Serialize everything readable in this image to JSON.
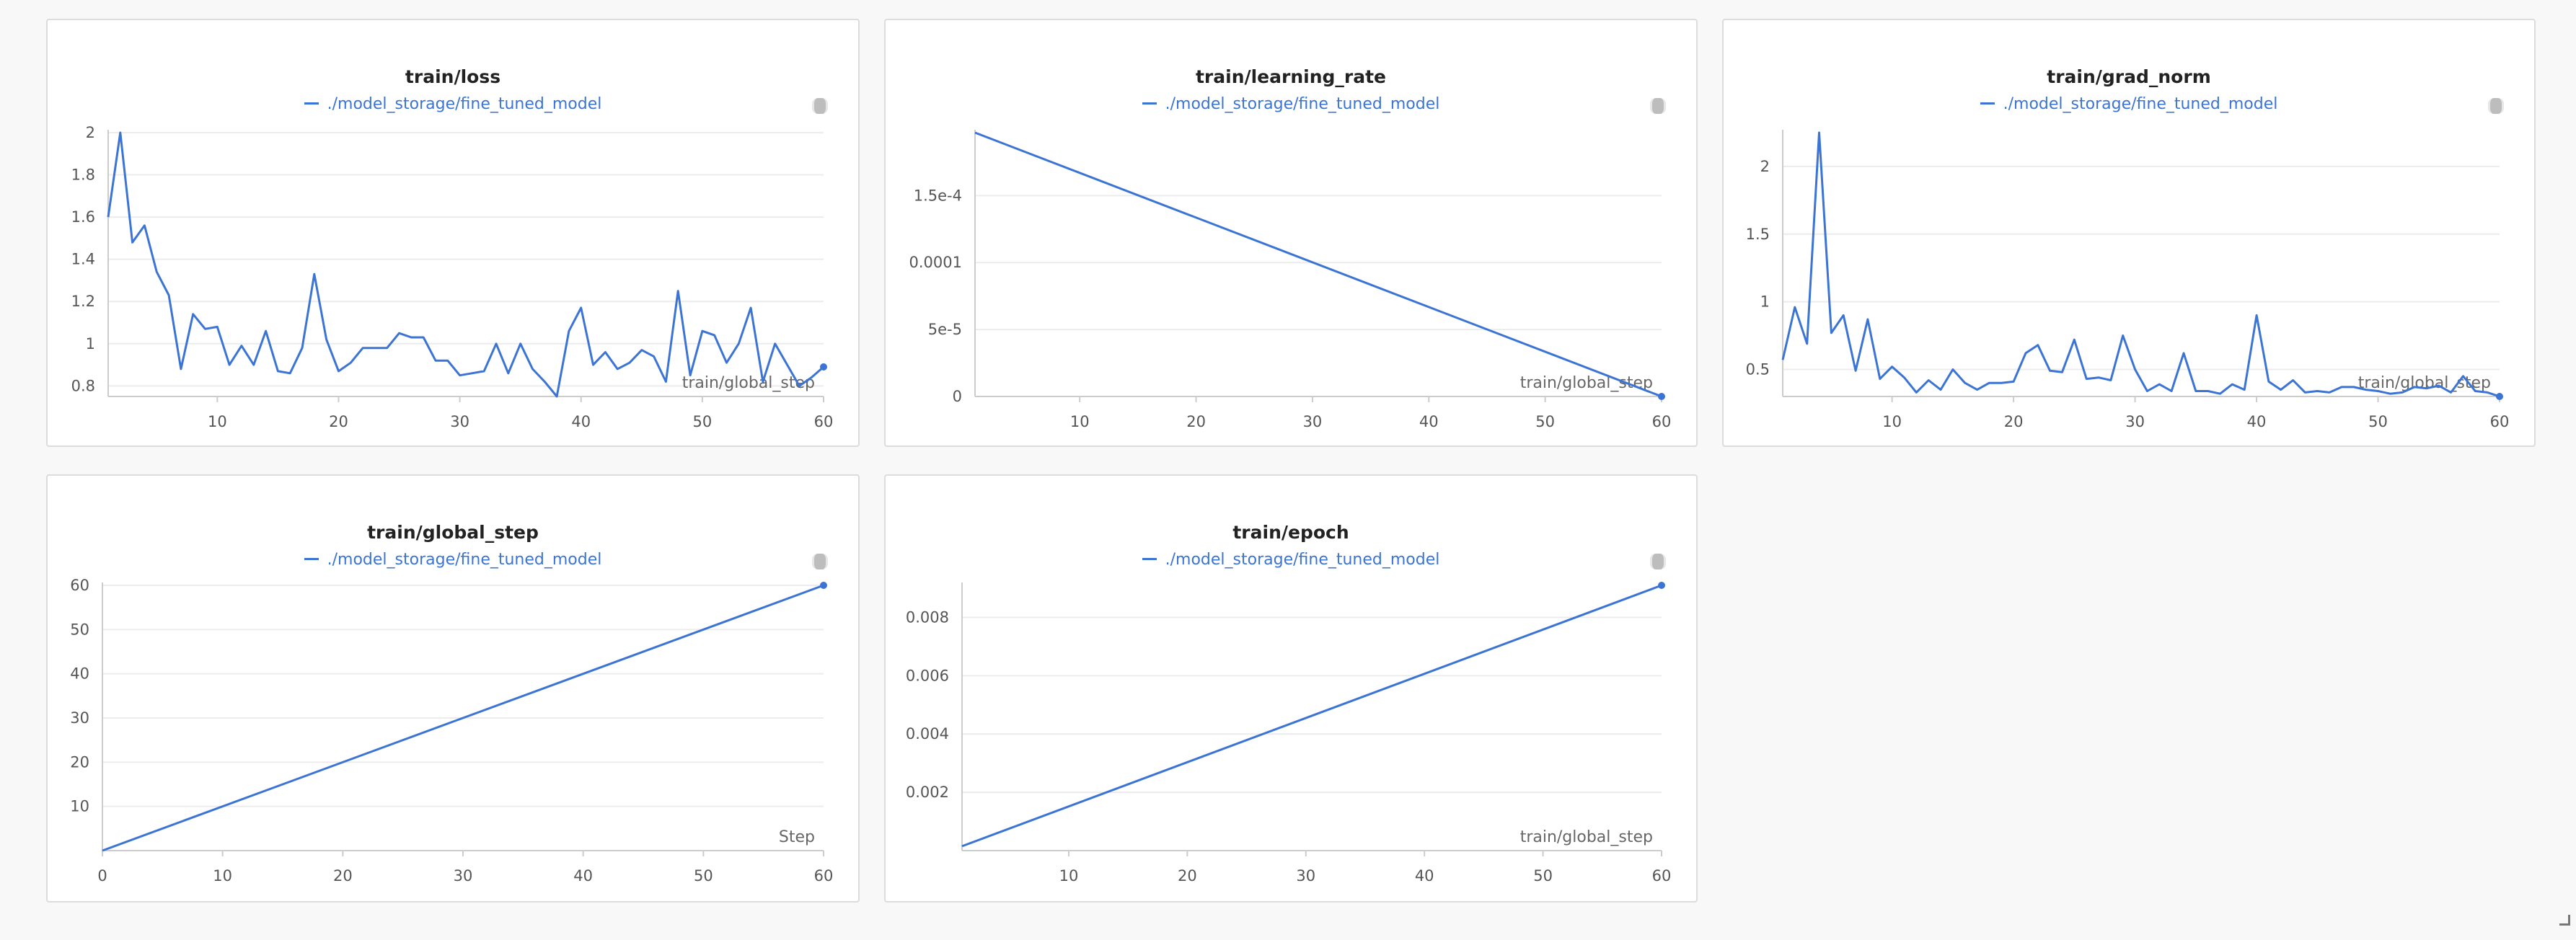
{
  "colors": {
    "series": "#3b74d4",
    "grid": "#ececec",
    "axis": "#cccccc"
  },
  "icons": {
    "panel_menu": "ellipsis-vertical-icon",
    "resize": "resize-corner-icon"
  },
  "chart_data": [
    {
      "type": "line",
      "title": "train/loss",
      "xlabel": "train/global_step",
      "ylabel": "",
      "xlim": [
        1,
        60
      ],
      "ylim": [
        0.75,
        2
      ],
      "xticks": [
        10,
        20,
        30,
        40,
        50,
        60
      ],
      "yticks": [
        0.8,
        1,
        1.2,
        1.4,
        1.6,
        1.8,
        2
      ],
      "ytick_labels": [
        "0.8",
        "1",
        "1.2",
        "1.4",
        "1.6",
        "1.8",
        "2"
      ],
      "grid": true,
      "legend": "top-center",
      "series": [
        {
          "name": "./model_storage/fine_tuned_model",
          "x": [
            1,
            2,
            3,
            4,
            5,
            6,
            7,
            8,
            9,
            10,
            11,
            12,
            13,
            14,
            15,
            16,
            17,
            18,
            19,
            20,
            21,
            22,
            23,
            24,
            25,
            26,
            27,
            28,
            29,
            30,
            31,
            32,
            33,
            34,
            35,
            36,
            37,
            38,
            39,
            40,
            41,
            42,
            43,
            44,
            45,
            46,
            47,
            48,
            49,
            50,
            51,
            52,
            53,
            54,
            55,
            56,
            57,
            58,
            59,
            60
          ],
          "y": [
            1.6,
            2.0,
            1.48,
            1.56,
            1.34,
            1.23,
            0.88,
            1.14,
            1.07,
            1.08,
            0.9,
            0.99,
            0.9,
            1.06,
            0.87,
            0.86,
            0.98,
            1.33,
            1.02,
            0.87,
            0.91,
            0.98,
            0.98,
            0.98,
            1.05,
            1.03,
            1.03,
            0.92,
            0.92,
            0.85,
            0.86,
            0.87,
            1.0,
            0.86,
            1.0,
            0.88,
            0.82,
            0.75,
            1.06,
            1.17,
            0.9,
            0.96,
            0.88,
            0.91,
            0.97,
            0.94,
            0.82,
            1.25,
            0.85,
            1.06,
            1.04,
            0.91,
            1.0,
            1.17,
            0.82,
            1.0,
            0.9,
            0.8,
            0.84,
            0.89
          ]
        }
      ]
    },
    {
      "type": "line",
      "title": "train/learning_rate",
      "xlabel": "train/global_step",
      "ylabel": "",
      "xlim": [
        1,
        60
      ],
      "ylim": [
        0,
        0.000197
      ],
      "xticks": [
        10,
        20,
        30,
        40,
        50,
        60
      ],
      "yticks": [
        0,
        5e-05,
        0.0001,
        0.00015
      ],
      "ytick_labels": [
        "0",
        "5e-5",
        "0.0001",
        "1.5e-4"
      ],
      "grid": true,
      "legend": "top-center",
      "series": [
        {
          "name": "./model_storage/fine_tuned_model",
          "x": [
            1,
            60
          ],
          "y": [
            0.000197,
            0
          ]
        }
      ]
    },
    {
      "type": "line",
      "title": "train/grad_norm",
      "xlabel": "train/global_step",
      "ylabel": "",
      "xlim": [
        1,
        60
      ],
      "ylim": [
        0.3,
        2.25
      ],
      "xticks": [
        10,
        20,
        30,
        40,
        50,
        60
      ],
      "yticks": [
        0.5,
        1,
        1.5,
        2
      ],
      "ytick_labels": [
        "0.5",
        "1",
        "1.5",
        "2"
      ],
      "grid": true,
      "legend": "top-center",
      "series": [
        {
          "name": "./model_storage/fine_tuned_model",
          "x": [
            1,
            2,
            3,
            4,
            5,
            6,
            7,
            8,
            9,
            10,
            11,
            12,
            13,
            14,
            15,
            16,
            17,
            18,
            19,
            20,
            21,
            22,
            23,
            24,
            25,
            26,
            27,
            28,
            29,
            30,
            31,
            32,
            33,
            34,
            35,
            36,
            37,
            38,
            39,
            40,
            41,
            42,
            43,
            44,
            45,
            46,
            47,
            48,
            49,
            50,
            51,
            52,
            53,
            54,
            55,
            56,
            57,
            58,
            59,
            60
          ],
          "y": [
            0.57,
            0.96,
            0.69,
            2.25,
            0.77,
            0.9,
            0.49,
            0.87,
            0.43,
            0.52,
            0.44,
            0.33,
            0.42,
            0.35,
            0.5,
            0.4,
            0.35,
            0.4,
            0.4,
            0.41,
            0.62,
            0.68,
            0.49,
            0.48,
            0.72,
            0.43,
            0.44,
            0.42,
            0.75,
            0.5,
            0.34,
            0.39,
            0.34,
            0.62,
            0.34,
            0.34,
            0.32,
            0.39,
            0.35,
            0.9,
            0.41,
            0.35,
            0.42,
            0.33,
            0.34,
            0.33,
            0.37,
            0.37,
            0.35,
            0.34,
            0.32,
            0.33,
            0.37,
            0.36,
            0.38,
            0.33,
            0.45,
            0.34,
            0.33,
            0.3
          ]
        }
      ]
    },
    {
      "type": "line",
      "title": "train/global_step",
      "xlabel": "Step",
      "ylabel": "",
      "xlim": [
        0,
        60
      ],
      "ylim": [
        0,
        60
      ],
      "xticks": [
        0,
        10,
        20,
        30,
        40,
        50,
        60
      ],
      "yticks": [
        10,
        20,
        30,
        40,
        50,
        60
      ],
      "ytick_labels": [
        "10",
        "20",
        "30",
        "40",
        "50",
        "60"
      ],
      "grid": true,
      "legend": "top-center",
      "series": [
        {
          "name": "./model_storage/fine_tuned_model",
          "x": [
            0,
            60
          ],
          "y": [
            0,
            60
          ]
        }
      ]
    },
    {
      "type": "line",
      "title": "train/epoch",
      "xlabel": "train/global_step",
      "ylabel": "",
      "xlim": [
        1,
        60
      ],
      "ylim": [
        0,
        0.0091
      ],
      "xticks": [
        10,
        20,
        30,
        40,
        50,
        60
      ],
      "yticks": [
        0.002,
        0.004,
        0.006,
        0.008
      ],
      "ytick_labels": [
        "0.002",
        "0.004",
        "0.006",
        "0.008"
      ],
      "grid": true,
      "legend": "top-center",
      "series": [
        {
          "name": "./model_storage/fine_tuned_model",
          "x": [
            1,
            60
          ],
          "y": [
            0.00015,
            0.0091
          ]
        }
      ]
    }
  ]
}
